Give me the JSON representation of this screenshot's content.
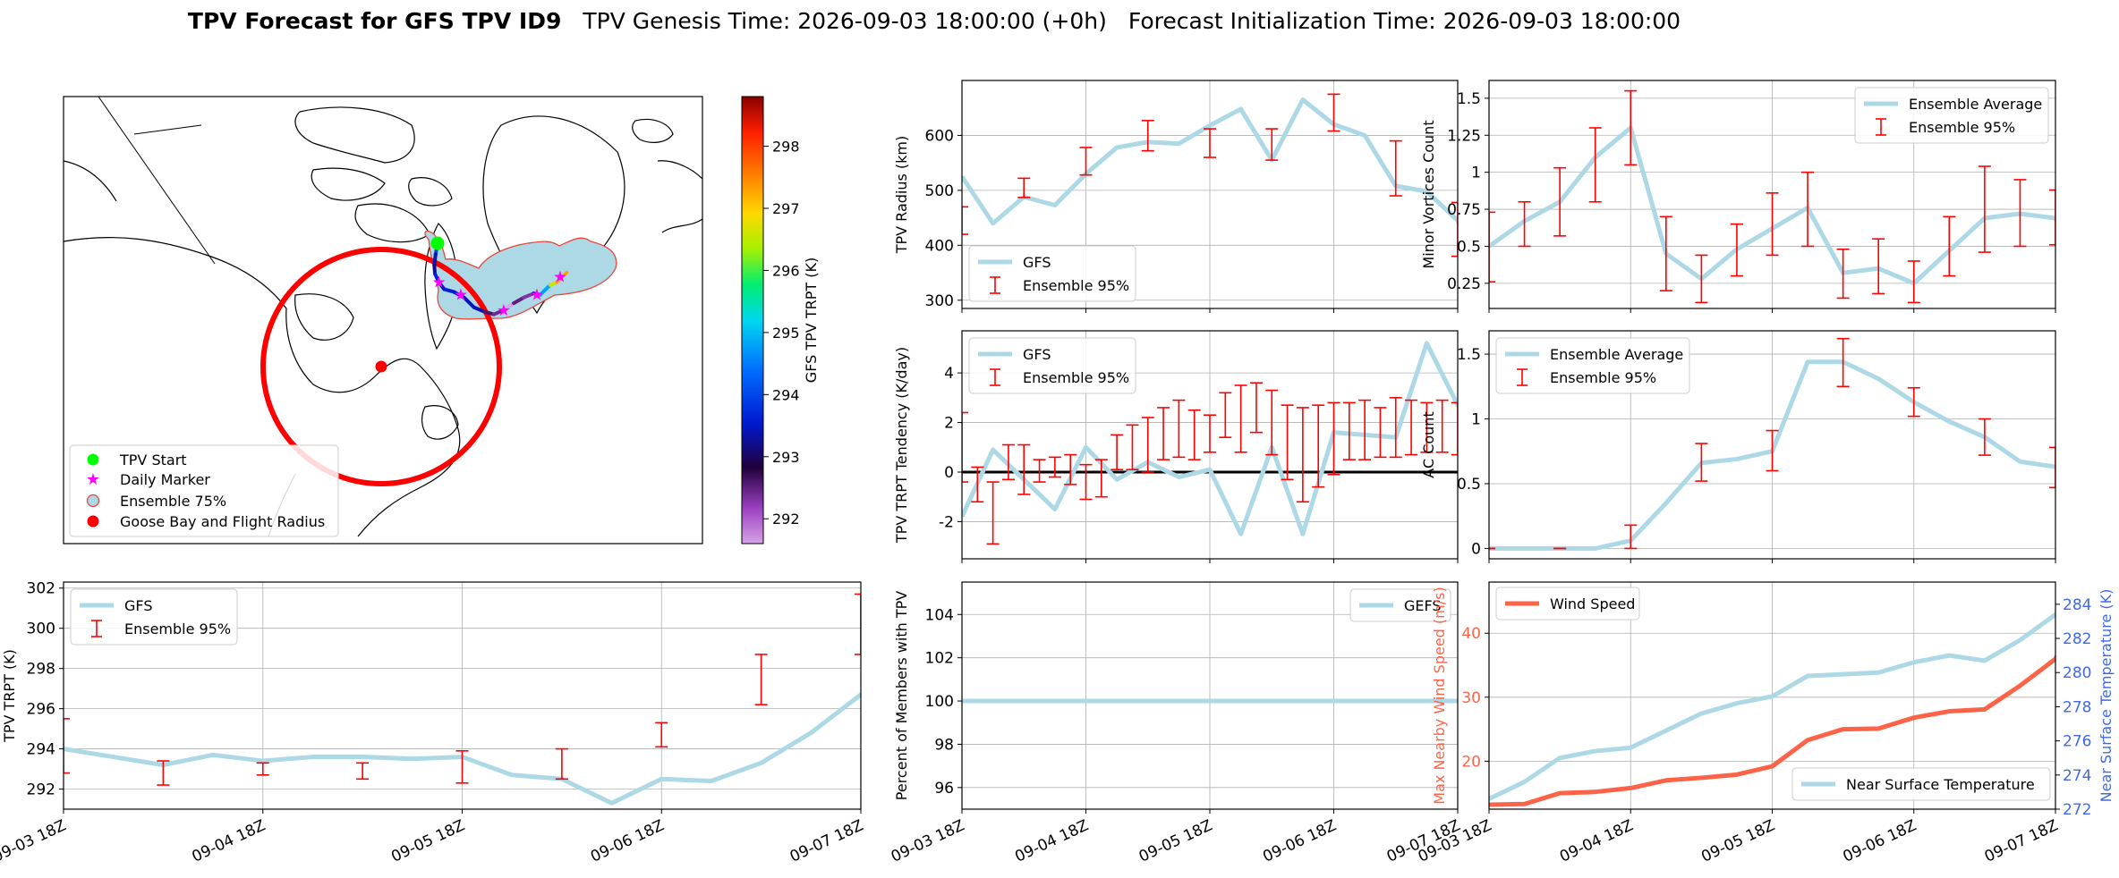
{
  "title": {
    "bold": "TPV Forecast for GFS TPV ID9",
    "genesis": "TPV Genesis Time: 2026-09-03 18:00:00 (+0h)",
    "init": "Forecast Initialization Time: 2026-09-03 18:00:00"
  },
  "colors": {
    "gfs": "#add8e6",
    "ens": "#ff0000",
    "wind": "#ff6347",
    "temp_axis": "#4169e1"
  },
  "map": {
    "legend": [
      "TPV Start",
      "Daily Marker",
      "Ensemble 75%",
      "Goose Bay and Flight Radius"
    ],
    "colorbar": {
      "label": "GFS TPV TRPT (K)",
      "ticks": [
        292,
        293,
        294,
        295,
        296,
        297,
        298
      ],
      "range": [
        291.6,
        298.8
      ]
    },
    "track": {
      "lon": [
        -73.5,
        -73.8,
        -74.0,
        -73.9,
        -73.3,
        -72.5,
        -71.0,
        -69.5,
        -68.0,
        -66.5,
        -65.0,
        -63.5,
        -62.0,
        -60.5,
        -59.0,
        -58.0,
        -56.5,
        -55.5,
        -54.0
      ],
      "lat": [
        79.7,
        78.9,
        78.1,
        77.5,
        76.9,
        76.4,
        76.2,
        75.8,
        75.1,
        74.8,
        74.6,
        74.9,
        75.4,
        75.8,
        76.1,
        76.0,
        76.7,
        76.9,
        77.6
      ],
      "trpt": [
        294.0,
        293.4,
        293.2,
        293.6,
        293.3,
        293.6,
        293.5,
        293.4,
        293.4,
        292.6,
        292.4,
        291.3,
        292.5,
        292.3,
        293.3,
        294.8,
        296.6,
        297.3,
        297.9
      ]
    },
    "daily_markers": {
      "lon": [
        -73.3,
        -70.0,
        -63.5,
        -58.5,
        -55.0
      ],
      "lat": [
        76.9,
        76.0,
        74.9,
        76.0,
        77.3
      ]
    },
    "goose_bay": {
      "lon": -60.4,
      "lat": 53.3
    }
  },
  "labels": {
    "x_ticks": [
      "09-03 18Z",
      "09-04 18Z",
      "09-05 18Z",
      "09-06 18Z",
      "09-07 18Z"
    ],
    "radius_ylabel": "TPV Radius (km)",
    "tendency_ylabel": "TPV TRPT Tendency (K/day)",
    "trpt_ylabel": "TPV TRPT (K)",
    "percent_ylabel": "Percent of Members with TPV",
    "minor_ylabel": "Minor Vortices Count",
    "ac_ylabel": "AC Count",
    "wind_ylabel": "Max Nearby Wind Speed (m/s)",
    "temp_ylabel": "Near Surface Temperature (K)",
    "gfs": "GFS",
    "gefs": "GEFS",
    "ens95": "Ensemble 95%",
    "ens_avg": "Ensemble Average",
    "wind_speed": "Wind Speed",
    "near_surface_temp": "Near Surface Temperature"
  },
  "chart_data": [
    {
      "id": "tpv-trpt",
      "type": "line",
      "xlabel": "",
      "ylabel": "TPV TRPT (K)",
      "ylim": [
        291,
        302.3
      ],
      "yticks": [
        292,
        294,
        296,
        298,
        300,
        302
      ],
      "xlim": [
        0,
        96
      ],
      "x_ticks_hours": [
        0,
        24,
        48,
        72,
        96
      ],
      "series": [
        {
          "name": "GFS",
          "x": [
            0,
            6,
            12,
            18,
            24,
            30,
            36,
            42,
            48,
            54,
            60,
            66,
            72,
            78,
            84,
            90,
            96,
            102
          ],
          "values": [
            294.0,
            293.6,
            293.2,
            293.7,
            293.4,
            293.6,
            293.6,
            293.5,
            293.6,
            292.7,
            292.5,
            291.3,
            292.5,
            292.4,
            293.3,
            294.8,
            296.7,
            298.0
          ]
        }
      ],
      "ensemble_95": {
        "name": "Ensemble 95%",
        "x": [
          0,
          12,
          24,
          36,
          48,
          60,
          72,
          84,
          96
        ],
        "low": [
          292.8,
          292.2,
          292.7,
          292.5,
          292.3,
          292.5,
          294.1,
          296.2,
          298.7
        ],
        "high": [
          295.5,
          293.4,
          293.3,
          293.3,
          293.9,
          294.0,
          295.3,
          298.7,
          301.7
        ]
      }
    },
    {
      "id": "tpv-radius",
      "type": "line",
      "xlabel": "",
      "ylabel": "TPV Radius (km)",
      "ylim": [
        285,
        700
      ],
      "yticks": [
        300,
        400,
        500,
        600
      ],
      "xlim": [
        0,
        96
      ],
      "x_ticks_hours": [
        0,
        24,
        48,
        72,
        96
      ],
      "series": [
        {
          "name": "GFS",
          "x": [
            0,
            6,
            12,
            18,
            24,
            30,
            36,
            42,
            48,
            54,
            60,
            66,
            72,
            78,
            84,
            90,
            96,
            102
          ],
          "values": [
            525,
            440,
            488,
            473,
            530,
            578,
            588,
            585,
            618,
            648,
            555,
            665,
            620,
            600,
            508,
            498,
            445,
            290
          ]
        }
      ],
      "ensemble_95": {
        "name": "Ensemble 95%",
        "x": [
          0,
          12,
          24,
          36,
          48,
          60,
          72,
          84,
          96
        ],
        "low": [
          420,
          487,
          528,
          572,
          560,
          555,
          608,
          490,
          380
        ],
        "high": [
          470,
          522,
          578,
          627,
          612,
          612,
          675,
          590,
          478
        ]
      }
    },
    {
      "id": "trpt-tendency",
      "type": "line",
      "xlabel": "",
      "ylabel": "TPV TRPT Tendency (K/day)",
      "ylim": [
        -3.5,
        5.7
      ],
      "yticks": [
        -2,
        0,
        2,
        4
      ],
      "hline": 0,
      "xlim": [
        0,
        96
      ],
      "x_ticks_hours": [
        0,
        24,
        48,
        72,
        96
      ],
      "series": [
        {
          "name": "GFS",
          "x": [
            0,
            6,
            12,
            18,
            24,
            30,
            36,
            42,
            48,
            54,
            60,
            66,
            72,
            78,
            84,
            90,
            96,
            102
          ],
          "values": [
            -1.8,
            0.9,
            -0.3,
            -1.5,
            1.0,
            -0.3,
            0.4,
            -0.2,
            0.1,
            -2.5,
            1.0,
            -2.5,
            1.6,
            1.5,
            1.4,
            5.2,
            2.7,
            2.7
          ]
        }
      ],
      "ensemble_95": {
        "name": "Ensemble 95%",
        "x": [
          0,
          3,
          6,
          9,
          12,
          15,
          18,
          21,
          24,
          27,
          30,
          33,
          36,
          39,
          42,
          45,
          48,
          51,
          54,
          57,
          60,
          63,
          66,
          69,
          72,
          75,
          78,
          81,
          84,
          87,
          90,
          93,
          96,
          99,
          102
        ],
        "low": [
          -0.4,
          -1.2,
          -2.9,
          -0.3,
          -0.9,
          -0.4,
          -0.2,
          -0.5,
          -1.1,
          -1.0,
          0.1,
          0.1,
          0.0,
          0.5,
          0.6,
          0.5,
          0.8,
          1.4,
          0.8,
          1.6,
          0.7,
          -0.3,
          -1.2,
          -0.6,
          -0.1,
          0.5,
          0.5,
          0.6,
          0.6,
          0.7,
          0.8,
          0.8,
          0.7,
          0.9,
          -0.3
        ],
        "high": [
          2.4,
          0.2,
          -0.4,
          1.1,
          1.1,
          0.5,
          0.6,
          0.7,
          0.3,
          0.5,
          1.5,
          1.9,
          2.2,
          2.6,
          2.9,
          2.5,
          2.3,
          3.2,
          3.5,
          3.6,
          3.3,
          2.7,
          2.6,
          2.7,
          2.8,
          2.8,
          2.9,
          2.6,
          3.0,
          2.9,
          2.8,
          2.9,
          2.8,
          2.7,
          2.7
        ]
      }
    },
    {
      "id": "percent-members",
      "type": "line",
      "xlabel": "",
      "ylabel": "Percent of Members with TPV",
      "ylim": [
        95,
        105.5
      ],
      "yticks": [
        96,
        98,
        100,
        102,
        104
      ],
      "xlim": [
        0,
        96
      ],
      "x_ticks_hours": [
        0,
        24,
        48,
        72,
        96
      ],
      "series": [
        {
          "name": "GEFS",
          "x": [
            0,
            102
          ],
          "values": [
            100,
            100
          ]
        }
      ]
    },
    {
      "id": "minor-vortices",
      "type": "line",
      "xlabel": "",
      "ylabel": "Minor Vortices Count",
      "ylim": [
        0.08,
        1.62
      ],
      "yticks": [
        0.25,
        0.5,
        0.75,
        1.0,
        1.25,
        1.5
      ],
      "xlim": [
        0,
        96
      ],
      "x_ticks_hours": [
        0,
        24,
        48,
        72,
        96
      ],
      "series": [
        {
          "name": "Ensemble Average",
          "x": [
            0,
            6,
            12,
            18,
            24,
            30,
            36,
            42,
            48,
            54,
            60,
            66,
            72,
            78,
            84,
            90,
            96,
            102
          ],
          "values": [
            0.5,
            0.67,
            0.8,
            1.1,
            1.3,
            0.45,
            0.28,
            0.48,
            0.62,
            0.76,
            0.32,
            0.35,
            0.25,
            0.47,
            0.69,
            0.72,
            0.69,
            0.15
          ]
        }
      ],
      "ensemble_95": {
        "name": "Ensemble 95%",
        "x": [
          0,
          6,
          12,
          18,
          24,
          30,
          36,
          42,
          48,
          54,
          60,
          66,
          72,
          78,
          84,
          90,
          96,
          102
        ],
        "low": [
          0.26,
          0.5,
          0.57,
          0.8,
          1.05,
          0.2,
          0.12,
          0.3,
          0.44,
          0.5,
          0.15,
          0.18,
          0.12,
          0.3,
          0.46,
          0.5,
          0.51,
          0.05
        ],
        "high": [
          0.73,
          0.8,
          1.03,
          1.3,
          1.55,
          0.7,
          0.44,
          0.65,
          0.86,
          1.0,
          0.48,
          0.55,
          0.4,
          0.7,
          1.04,
          0.95,
          0.88,
          0.3
        ]
      }
    },
    {
      "id": "ac-count",
      "type": "line",
      "xlabel": "",
      "ylabel": "AC Count",
      "ylim": [
        -0.08,
        1.68
      ],
      "yticks": [
        0.0,
        0.5,
        1.0,
        1.5
      ],
      "xlim": [
        0,
        96
      ],
      "x_ticks_hours": [
        0,
        24,
        48,
        72,
        96
      ],
      "series": [
        {
          "name": "Ensemble Average",
          "x": [
            0,
            6,
            12,
            18,
            24,
            30,
            36,
            42,
            48,
            54,
            60,
            66,
            72,
            78,
            84,
            90,
            96,
            102
          ],
          "values": [
            0.0,
            0.0,
            0.0,
            0.0,
            0.06,
            0.35,
            0.66,
            0.69,
            0.75,
            1.44,
            1.44,
            1.31,
            1.13,
            0.98,
            0.86,
            0.67,
            0.63,
            0.12
          ]
        }
      ],
      "ensemble_95": {
        "name": "Ensemble 95%",
        "x": [
          0,
          12,
          24,
          36,
          48,
          60,
          72,
          84,
          96
        ],
        "low": [
          0.0,
          0.0,
          0.0,
          0.52,
          0.6,
          1.25,
          1.02,
          0.72,
          0.47
        ],
        "high": [
          0.0,
          0.0,
          0.18,
          0.81,
          0.91,
          1.62,
          1.24,
          1.0,
          0.78
        ]
      }
    },
    {
      "id": "wind-temp",
      "type": "line",
      "xlabel": "",
      "ylabel": "Max Nearby Wind Speed (m/s)",
      "ylim": [
        12.5,
        48
      ],
      "yticks": [
        20,
        30,
        40
      ],
      "y2label": "Near Surface Temperature (K)",
      "y2lim": [
        272,
        285.3
      ],
      "y2ticks": [
        272,
        274,
        276,
        278,
        280,
        282,
        284
      ],
      "xlim": [
        0,
        96
      ],
      "x_ticks_hours": [
        0,
        24,
        48,
        72,
        96
      ],
      "series": [
        {
          "name": "Wind Speed",
          "axis": "left",
          "x": [
            0,
            6,
            12,
            18,
            24,
            30,
            36,
            42,
            48,
            54,
            60,
            66,
            72,
            78,
            84,
            90,
            96,
            102
          ],
          "values": [
            13.2,
            13.3,
            15.0,
            15.2,
            15.8,
            17.0,
            17.4,
            17.9,
            19.2,
            23.3,
            25.0,
            25.1,
            26.8,
            27.8,
            28.1,
            31.8,
            36.0,
            47.0
          ]
        },
        {
          "name": "Near Surface Temperature",
          "axis": "right",
          "x": [
            0,
            6,
            12,
            18,
            24,
            30,
            36,
            42,
            48,
            54,
            60,
            66,
            72,
            78,
            84,
            90,
            96,
            102
          ],
          "values": [
            272.6,
            273.6,
            275.0,
            275.4,
            275.6,
            276.6,
            277.6,
            278.2,
            278.6,
            279.8,
            279.9,
            280.0,
            280.6,
            281.0,
            280.7,
            281.9,
            283.4,
            285.5
          ]
        }
      ]
    }
  ]
}
